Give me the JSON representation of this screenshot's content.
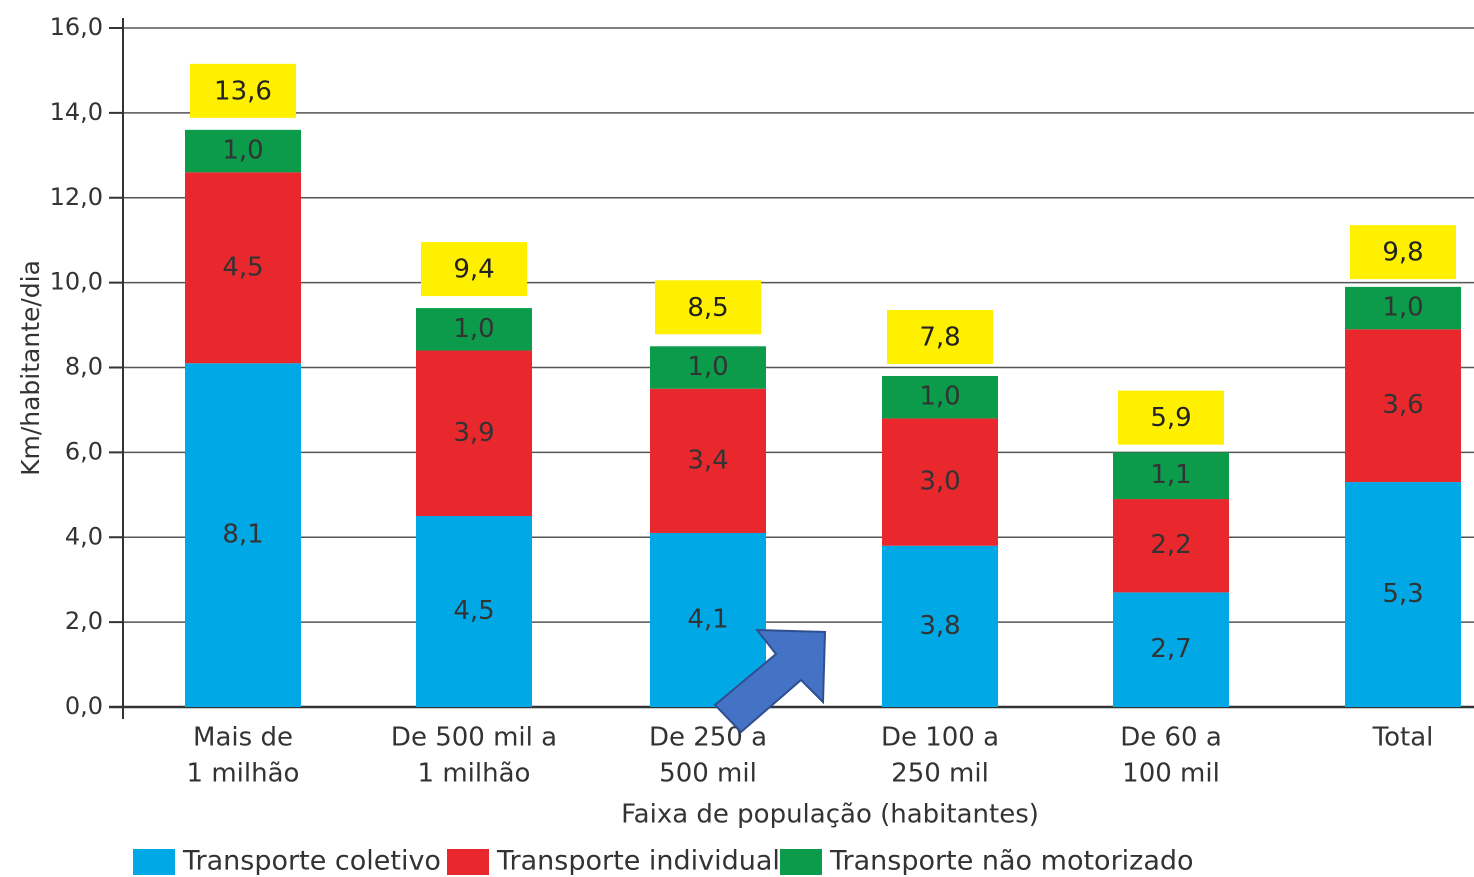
{
  "chart_data": {
    "type": "stacked_bar",
    "y_axis_label": "Km/habitante/dia",
    "x_axis_label": "Faixa de população (habitantes)",
    "categories": [
      [
        "Mais de",
        "1 milhão"
      ],
      [
        "De 500 mil a",
        "1 milhão"
      ],
      [
        "De 250 a",
        "500 mil"
      ],
      [
        "De 100 a",
        "250 mil"
      ],
      [
        "De 60 a",
        "100 mil"
      ],
      [
        "Total"
      ]
    ],
    "series": [
      {
        "name": "Transporte coletivo",
        "color": "#00a9e6",
        "values": [
          8.1,
          4.5,
          4.1,
          3.8,
          2.7,
          5.3
        ],
        "value_labels": [
          "8,1",
          "4,5",
          "4,1",
          "3,8",
          "2,7",
          "5,3"
        ]
      },
      {
        "name": "Transporte individual",
        "color": "#e8282d",
        "values": [
          4.5,
          3.9,
          3.4,
          3.0,
          2.2,
          3.6
        ],
        "value_labels": [
          "4,5",
          "3,9",
          "3,4",
          "3,0",
          "2,2",
          "3,6"
        ]
      },
      {
        "name": "Transporte não motorizado",
        "color": "#0b9b4b",
        "values": [
          1.0,
          1.0,
          1.0,
          1.0,
          1.1,
          1.0
        ],
        "value_labels": [
          "1,0",
          "1,0",
          "1,0",
          "1,0",
          "1,1",
          "1,0"
        ]
      }
    ],
    "totals": {
      "color": "#fff000",
      "values": [
        13.6,
        9.4,
        8.5,
        7.8,
        5.9,
        9.8
      ],
      "value_labels": [
        "13,6",
        "9,4",
        "8,5",
        "7,8",
        "5,9",
        "9,8"
      ]
    },
    "ylim": [
      0,
      16
    ],
    "yticks": [
      {
        "value": 0,
        "label": "0,0"
      },
      {
        "value": 2,
        "label": "2,0"
      },
      {
        "value": 4,
        "label": "4,0"
      },
      {
        "value": 6,
        "label": "6,0"
      },
      {
        "value": 8,
        "label": "8,0"
      },
      {
        "value": 10,
        "label": "10,0"
      },
      {
        "value": 12,
        "label": "12,0"
      },
      {
        "value": 14,
        "label": "14,0"
      },
      {
        "value": 16,
        "label": "16,0"
      }
    ],
    "grid": true
  }
}
